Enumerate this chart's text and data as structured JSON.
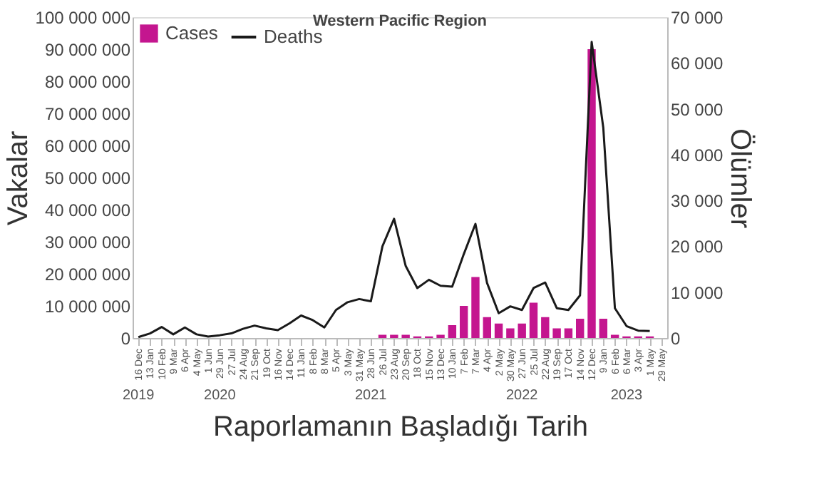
{
  "chart_data": {
    "type": "bar",
    "title": "Western Pacific Region",
    "xlabel": "Raporlamanın Başladığı Tarih",
    "ylabel": "Vakalar",
    "y2label": "Ölümler",
    "x": [
      "2019-12-16",
      "2020-01-13",
      "2020-02-10",
      "2020-03-09",
      "2020-04-06",
      "2020-05-04",
      "2020-06-01",
      "2020-06-29",
      "2020-07-27",
      "2020-08-24",
      "2020-09-21",
      "2020-10-19",
      "2020-11-16",
      "2020-12-14",
      "2021-01-11",
      "2021-02-08",
      "2021-03-08",
      "2021-04-05",
      "2021-05-03",
      "2021-05-31",
      "2021-06-28",
      "2021-07-26",
      "2021-08-23",
      "2021-09-20",
      "2021-10-18",
      "2021-11-15",
      "2021-12-13",
      "2022-01-10",
      "2022-02-07",
      "2022-03-07",
      "2022-04-04",
      "2022-05-02",
      "2022-05-30",
      "2022-06-27",
      "2022-07-25",
      "2022-08-22",
      "2022-09-19",
      "2022-10-17",
      "2022-11-14",
      "2022-12-12",
      "2023-01-09",
      "2023-02-06",
      "2023-03-06",
      "2023-04-03",
      "2023-05-01"
    ],
    "series": [
      {
        "name": "Cases",
        "color": "#c4168f",
        "values": [
          0,
          0,
          0,
          0,
          0,
          0,
          0,
          0,
          0,
          0,
          0,
          0,
          0,
          0,
          0,
          0,
          0,
          0,
          0,
          0,
          0,
          1000000,
          1000000,
          1000000,
          500000,
          500000,
          1000000,
          4000000,
          10000000,
          19000000,
          6500000,
          4500000,
          3000000,
          4500000,
          11000000,
          6500000,
          3000000,
          3000000,
          6000000,
          90000000,
          6000000,
          1000000,
          500000,
          500000,
          500000
        ]
      },
      {
        "name": "Deaths",
        "type": "line",
        "axis": "y2",
        "color": "#1a1a1a",
        "values": [
          200,
          1000,
          2400,
          800,
          2300,
          800,
          300,
          600,
          1000,
          2000,
          2700,
          2100,
          1700,
          3200,
          4900,
          3900,
          2300,
          6100,
          7800,
          8500,
          8000,
          20000,
          26000,
          15700,
          10900,
          12700,
          11400,
          11200,
          18300,
          24900,
          12000,
          5400,
          6900,
          6100,
          10900,
          12100,
          6500,
          6100,
          9300,
          64600,
          45900,
          6500,
          2600,
          1600,
          1500
        ]
      }
    ],
    "xlim": [
      "2019-12-02",
      "2023-06-12"
    ],
    "xticks": [
      {
        "value": "2019-12-16",
        "label": "16 Dec"
      },
      {
        "value": "2020-01-13",
        "label": "13 Jan"
      },
      {
        "value": "2020-02-10",
        "label": "10 Feb"
      },
      {
        "value": "2020-03-09",
        "label": "9 Mar"
      },
      {
        "value": "2020-04-06",
        "label": "6 Apr"
      },
      {
        "value": "2020-05-04",
        "label": "4 May"
      },
      {
        "value": "2020-06-01",
        "label": "1 Jun"
      },
      {
        "value": "2020-06-29",
        "label": "29 Jun"
      },
      {
        "value": "2020-07-27",
        "label": "27 Jul"
      },
      {
        "value": "2020-08-24",
        "label": "24 Aug"
      },
      {
        "value": "2020-09-21",
        "label": "21 Sep"
      },
      {
        "value": "2020-10-19",
        "label": "19 Oct"
      },
      {
        "value": "2020-11-16",
        "label": "16 Nov"
      },
      {
        "value": "2020-12-14",
        "label": "14 Dec"
      },
      {
        "value": "2021-01-11",
        "label": "11 Jan"
      },
      {
        "value": "2021-02-08",
        "label": "8 Feb"
      },
      {
        "value": "2021-03-08",
        "label": "8 Mar"
      },
      {
        "value": "2021-04-05",
        "label": "5 Apr"
      },
      {
        "value": "2021-05-03",
        "label": "3 May"
      },
      {
        "value": "2021-05-31",
        "label": "31 May"
      },
      {
        "value": "2021-06-28",
        "label": "28 Jun"
      },
      {
        "value": "2021-07-26",
        "label": "26 Jul"
      },
      {
        "value": "2021-08-23",
        "label": "23 Aug"
      },
      {
        "value": "2021-09-20",
        "label": "20 Sep"
      },
      {
        "value": "2021-10-18",
        "label": "18 Oct"
      },
      {
        "value": "2021-11-15",
        "label": "15 Nov"
      },
      {
        "value": "2021-12-13",
        "label": "13 Dec"
      },
      {
        "value": "2022-01-10",
        "label": "10 Jan"
      },
      {
        "value": "2022-02-07",
        "label": "7 Feb"
      },
      {
        "value": "2022-03-07",
        "label": "7 Mar"
      },
      {
        "value": "2022-04-04",
        "label": "4 Apr"
      },
      {
        "value": "2022-05-02",
        "label": "2 May"
      },
      {
        "value": "2022-05-30",
        "label": "30 May"
      },
      {
        "value": "2022-06-27",
        "label": "27 Jun"
      },
      {
        "value": "2022-07-25",
        "label": "25 Jul"
      },
      {
        "value": "2022-08-22",
        "label": "22 Aug"
      },
      {
        "value": "2022-09-19",
        "label": "19 Sep"
      },
      {
        "value": "2022-10-17",
        "label": "17 Oct"
      },
      {
        "value": "2022-11-14",
        "label": "14 Nov"
      },
      {
        "value": "2022-12-12",
        "label": "12 Dec"
      },
      {
        "value": "2023-01-09",
        "label": "9 Jan"
      },
      {
        "value": "2023-02-06",
        "label": "6 Feb"
      },
      {
        "value": "2023-03-06",
        "label": "6 Mar"
      },
      {
        "value": "2023-04-03",
        "label": "3 Apr"
      },
      {
        "value": "2023-05-01",
        "label": "1 May"
      },
      {
        "value": "2023-05-29",
        "label": "29 May"
      }
    ],
    "ylim": [
      0,
      100000000
    ],
    "yticks": [
      0,
      10000000,
      20000000,
      30000000,
      40000000,
      50000000,
      60000000,
      70000000,
      80000000,
      90000000,
      100000000
    ],
    "y2lim": [
      0,
      70000
    ],
    "y2ticks": [
      0,
      10000,
      20000,
      30000,
      40000,
      50000,
      60000,
      70000
    ],
    "annotations": [
      "2019",
      "2020",
      "2021",
      "2022",
      "2023"
    ],
    "legend": "top left",
    "grid": false
  }
}
